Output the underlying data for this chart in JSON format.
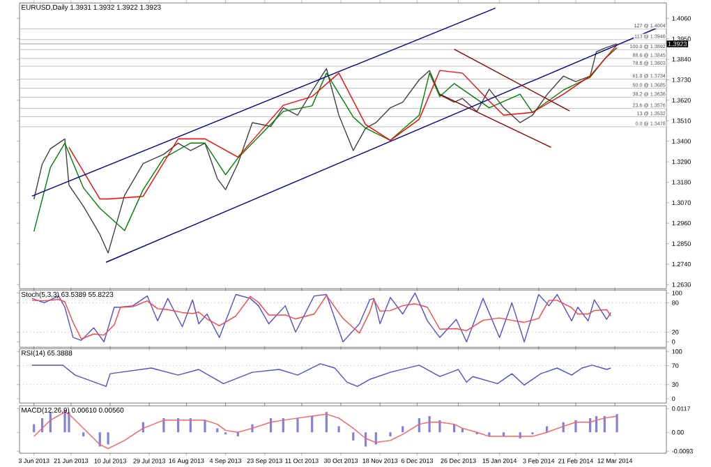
{
  "chart_data": [
    {
      "type": "line",
      "title": "EURUSD,Daily  1.3931 1.3932 1.3922 1.3923",
      "tick_labels": "y",
      "xlim": [
        "2013-05-27",
        "2014-04-06"
      ],
      "ylim": [
        1.2608,
        1.4143
      ],
      "xticks": [
        "2013-06-03",
        "2013-06-21",
        "2013-07-10",
        "2013-07-29",
        "2013-08-16",
        "2013-09-04",
        "2013-09-23",
        "2013-10-11",
        "2013-10-30",
        "2013-11-18",
        "2013-12-06",
        "2013-12-26",
        "2014-01-15",
        "2014-02-03",
        "2014-02-21",
        "2014-03-12"
      ],
      "yticks": [
        {
          "value": 1.406,
          "label": "1.4060"
        },
        {
          "value": 1.395,
          "label": "1.3950"
        },
        {
          "value": 1.384,
          "label": "1.3840"
        },
        {
          "value": 1.373,
          "label": "1.3730"
        },
        {
          "value": 1.362,
          "label": "1.3620"
        },
        {
          "value": 1.351,
          "label": "1.3510"
        },
        {
          "value": 1.34,
          "label": "1.3400"
        },
        {
          "value": 1.329,
          "label": "1.3290"
        },
        {
          "value": 1.318,
          "label": "1.3180"
        },
        {
          "value": 1.307,
          "label": "1.3070"
        },
        {
          "value": 1.296,
          "label": "1.2960"
        },
        {
          "value": 1.285,
          "label": "1.2850"
        },
        {
          "value": 1.274,
          "label": "1.2740"
        },
        {
          "value": 1.263,
          "label": "1.2630"
        }
      ],
      "x": [
        "2013-06-03",
        "2013-06-07",
        "2013-06-11",
        "2013-06-18",
        "2013-06-20",
        "2013-06-27",
        "2013-07-05",
        "2013-07-09",
        "2013-07-17",
        "2013-07-26",
        "2013-08-05",
        "2013-08-12",
        "2013-08-18",
        "2013-08-25",
        "2013-08-31",
        "2013-09-04",
        "2013-09-10",
        "2013-09-17",
        "2013-09-26",
        "2013-10-02",
        "2013-10-09",
        "2013-10-16",
        "2013-10-23",
        "2013-10-29",
        "2013-11-05",
        "2013-11-11",
        "2013-11-16",
        "2013-11-23",
        "2013-11-29",
        "2013-12-07",
        "2013-12-12",
        "2013-12-17",
        "2013-12-24",
        "2013-12-28",
        "2014-01-04",
        "2014-01-10",
        "2014-01-17",
        "2014-01-25",
        "2014-01-31",
        "2014-02-07",
        "2014-02-15",
        "2014-02-21",
        "2014-02-28",
        "2014-03-03",
        "2014-03-07",
        "2014-03-13"
      ],
      "series": [
        {
          "color": "#404040",
          "values": [
            1.3089,
            1.3277,
            1.336,
            1.3412,
            1.3164,
            1.3051,
            1.29,
            1.28,
            1.311,
            1.328,
            1.333,
            1.339,
            1.335,
            1.339,
            1.32,
            1.314,
            1.328,
            1.35,
            1.348,
            1.358,
            1.354,
            1.367,
            1.379,
            1.354,
            1.335,
            1.347,
            1.35,
            1.358,
            1.361,
            1.373,
            1.378,
            1.365,
            1.361,
            1.363,
            1.356,
            1.368,
            1.358,
            1.35,
            1.354,
            1.365,
            1.375,
            1.372,
            1.375,
            1.388,
            1.39,
            1.3923
          ]
        },
        {
          "color": "#008000",
          "x": [
            "2013-06-03",
            "2013-06-11",
            "2013-06-18",
            "2013-06-27",
            "2013-07-05",
            "2013-07-17",
            "2013-07-26",
            "2013-08-05",
            "2013-08-18",
            "2013-08-25",
            "2013-09-04",
            "2013-09-10",
            "2013-10-02",
            "2013-10-16",
            "2013-10-23",
            "2013-11-05",
            "2013-11-11",
            "2013-11-23",
            "2013-12-07",
            "2013-12-12",
            "2013-12-17",
            "2013-12-24",
            "2014-01-10",
            "2014-01-25",
            "2014-01-31",
            "2014-02-15",
            "2014-02-28",
            "2014-03-07",
            "2014-03-13"
          ],
          "values": [
            1.2915,
            1.326,
            1.339,
            1.315,
            1.304,
            1.292,
            1.314,
            1.331,
            1.339,
            1.339,
            1.322,
            1.331,
            1.356,
            1.359,
            1.3766,
            1.353,
            1.347,
            1.3405,
            1.354,
            1.3766,
            1.364,
            1.371,
            1.358,
            1.3653,
            1.3555,
            1.3675,
            1.3744,
            1.3842,
            1.3902
          ]
        },
        {
          "color": "#ff0000",
          "x": [
            "2013-06-20",
            "2013-07-05",
            "2013-07-09",
            "2013-07-26",
            "2013-08-12",
            "2013-08-25",
            "2013-09-10",
            "2013-10-02",
            "2013-10-16",
            "2013-10-29",
            "2013-11-11",
            "2013-11-23",
            "2013-12-07",
            "2013-12-17",
            "2013-12-28",
            "2014-01-10",
            "2014-01-17",
            "2014-01-31",
            "2014-02-15",
            "2014-02-28",
            "2014-03-13"
          ],
          "values": [
            1.3367,
            1.309,
            1.309,
            1.3104,
            1.3413,
            1.3413,
            1.3315,
            1.3593,
            1.364,
            1.3766,
            1.349,
            1.3405,
            1.3518,
            1.378,
            1.3766,
            1.3616,
            1.354,
            1.3555,
            1.3653,
            1.3751,
            1.3917
          ]
        },
        {
          "color": "#00008b",
          "x": [
            "2013-06-02",
            "2014-01-13"
          ],
          "values": [
            1.3105,
            1.4115
          ]
        },
        {
          "color": "#00008b",
          "x": [
            "2013-07-08",
            "2014-04-06"
          ],
          "values": [
            1.275,
            1.403
          ]
        },
        {
          "color": "#8b0000",
          "x": [
            "2013-12-24",
            "2014-02-18"
          ],
          "values": [
            1.3894,
            1.3563
          ]
        },
        {
          "color": "#8b0000",
          "x": [
            "2013-12-17",
            "2014-02-09"
          ],
          "values": [
            1.3653,
            1.3367
          ]
        }
      ],
      "ref_lines": [
        {
          "axis": "y",
          "value": 1.3923,
          "color": "#a0a0a0"
        },
        {
          "axis": "y",
          "value": 1.4004,
          "label": "127 @ 1.4004",
          "color": "#c0c0c0"
        },
        {
          "axis": "y",
          "value": 1.3946,
          "label": "113 @ 1.3946",
          "color": "#c0c0c0"
        },
        {
          "axis": "y",
          "value": 1.3892,
          "label": "100.0 @ 1.3892",
          "color": "#c0c0c0"
        },
        {
          "axis": "y",
          "value": 1.3845,
          "label": "88.6 @ 1.3845",
          "color": "#c0c0c0"
        },
        {
          "axis": "y",
          "value": 1.3803,
          "label": "78.6 @ 1.3803",
          "color": "#c0c0c0"
        },
        {
          "axis": "y",
          "value": 1.3734,
          "label": "61.8 @ 1.3734",
          "color": "#c0c0c0"
        },
        {
          "axis": "y",
          "value": 1.3685,
          "label": "50.0 @ 1.3685",
          "color": "#c0c0c0"
        },
        {
          "axis": "y",
          "value": 1.3636,
          "label": "38.2 @ 1.3636",
          "color": "#c0c0c0"
        },
        {
          "axis": "y",
          "value": 1.3576,
          "label": "23.6 @ 1.3576",
          "color": "#c0c0c0"
        },
        {
          "axis": "y",
          "value": 1.3532,
          "label": "13 @ 1.3532",
          "color": "#c0c0c0"
        },
        {
          "axis": "y",
          "value": 1.3478,
          "label": "0.0 @ 1.3478",
          "color": "#c0c0c0"
        }
      ],
      "annotations": [
        {
          "text": "1.3923",
          "y": 1.3923
        }
      ]
    },
    {
      "type": "line",
      "title": "Stoch(5,3,3) 63.5389 55.8223",
      "tick_labels": "y",
      "xlim": [
        "2013-05-27",
        "2014-04-06"
      ],
      "ylim": [
        -11,
        106
      ],
      "xticks": [
        "2013-06-03",
        "2013-06-21",
        "2013-07-10",
        "2013-07-29",
        "2013-08-16",
        "2013-09-04",
        "2013-09-23",
        "2013-10-11",
        "2013-10-30",
        "2013-11-18",
        "2013-12-06",
        "2013-12-26",
        "2014-01-15",
        "2014-02-03",
        "2014-02-21",
        "2014-03-12"
      ],
      "yticks": [
        100,
        80,
        20,
        0
      ],
      "x": [
        "2013-06-02",
        "2013-06-08",
        "2013-06-15",
        "2013-06-18",
        "2013-06-22",
        "2013-06-26",
        "2013-07-02",
        "2013-07-07",
        "2013-07-12",
        "2013-07-15",
        "2013-07-21",
        "2013-07-28",
        "2013-08-02",
        "2013-08-07",
        "2013-08-14",
        "2013-08-19",
        "2013-08-22",
        "2013-08-26",
        "2013-09-01",
        "2013-09-09",
        "2013-09-16",
        "2013-09-20",
        "2013-09-25",
        "2013-10-03",
        "2013-10-08",
        "2013-10-17",
        "2013-10-23",
        "2013-10-31",
        "2013-11-08",
        "2013-11-13",
        "2013-11-15",
        "2013-11-18",
        "2013-11-23",
        "2013-11-29",
        "2013-12-05",
        "2013-12-11",
        "2013-12-17",
        "2013-12-25",
        "2013-12-30",
        "2014-01-07",
        "2014-01-15",
        "2014-01-21",
        "2014-01-27",
        "2014-02-03",
        "2014-02-08",
        "2014-02-12",
        "2014-02-19",
        "2014-02-22",
        "2014-02-27",
        "2014-03-02",
        "2014-03-08",
        "2014-03-10"
      ],
      "series": [
        {
          "color": "#5050d0",
          "values": [
            89,
            80,
            94,
            71,
            9,
            3,
            29,
            0,
            71,
            71,
            74,
            94,
            43,
            89,
            31,
            86,
            37,
            57,
            9,
            97,
            89,
            74,
            37,
            74,
            20,
            94,
            97,
            0,
            37,
            86,
            89,
            37,
            91,
            57,
            100,
            43,
            9,
            46,
            0,
            89,
            9,
            80,
            0,
            97,
            74,
            97,
            43,
            71,
            43,
            86,
            46,
            60
          ]
        },
        {
          "color": "#ff4040",
          "values": [
            85,
            84,
            87,
            82,
            40,
            6,
            16,
            14,
            35,
            71,
            72,
            84,
            68,
            66,
            60,
            58,
            61,
            47,
            33,
            53,
            93,
            81,
            55,
            55,
            47,
            57,
            95,
            48,
            18,
            61,
            87,
            63,
            64,
            74,
            78,
            71,
            26,
            27,
            23,
            44,
            49,
            44,
            40,
            48,
            85,
            85,
            70,
            57,
            57,
            64,
            66,
            53
          ]
        }
      ],
      "ref_lines": [
        {
          "axis": "y",
          "value": 80,
          "color": "#b0b0b0",
          "line_style": "dotted"
        },
        {
          "axis": "y",
          "value": 20,
          "color": "#b0b0b0",
          "line_style": "dotted"
        }
      ]
    },
    {
      "type": "line",
      "title": "RSI(14) 65.3888",
      "tick_labels": "y",
      "xlim": [
        "2013-05-27",
        "2014-04-06"
      ],
      "ylim": [
        -9,
        106
      ],
      "xticks": [
        "2013-06-03",
        "2013-06-21",
        "2013-07-10",
        "2013-07-29",
        "2013-08-16",
        "2013-09-04",
        "2013-09-23",
        "2013-10-11",
        "2013-10-30",
        "2013-11-18",
        "2013-12-06",
        "2013-12-26",
        "2014-01-15",
        "2014-02-03",
        "2014-02-21",
        "2014-03-12"
      ],
      "yticks": [
        100,
        70,
        30,
        0
      ],
      "x": [
        "2013-06-02",
        "2013-06-17",
        "2013-06-23",
        "2013-07-08",
        "2013-07-10",
        "2013-07-30",
        "2013-08-12",
        "2013-08-22",
        "2013-09-03",
        "2013-09-17",
        "2013-09-30",
        "2013-10-09",
        "2013-10-20",
        "2013-10-27",
        "2013-11-02",
        "2013-11-07",
        "2013-11-13",
        "2013-11-23",
        "2013-12-07",
        "2013-12-17",
        "2013-12-26",
        "2013-12-30",
        "2014-01-02",
        "2014-01-14",
        "2014-01-21",
        "2014-01-27",
        "2014-02-04",
        "2014-02-12",
        "2014-02-19",
        "2014-02-24",
        "2014-03-01",
        "2014-03-08",
        "2014-03-10"
      ],
      "series": [
        {
          "color": "#5050d0",
          "values": [
            71,
            71,
            50,
            26,
            53,
            65,
            50,
            62,
            32,
            56,
            62,
            50,
            74,
            65,
            35,
            26,
            41,
            56,
            71,
            47,
            62,
            35,
            47,
            32,
            53,
            29,
            53,
            65,
            50,
            65,
            71,
            62,
            65
          ]
        }
      ],
      "ref_lines": [
        {
          "axis": "y",
          "value": 70,
          "color": "#b0b0b0",
          "line_style": "dotted"
        },
        {
          "axis": "y",
          "value": 30,
          "color": "#b0b0b0",
          "line_style": "dotted"
        }
      ]
    },
    {
      "type": "bar",
      "title": "MACD(12,26,9) 0.00610 0.00560",
      "xlim": [
        "2013-05-27",
        "2014-04-06"
      ],
      "ylim": [
        -0.0103,
        0.0131
      ],
      "xticks": [
        {
          "value": "2013-06-03",
          "label": "3 Jun 2013"
        },
        {
          "value": "2013-06-21",
          "label": "21 Jun 2013"
        },
        {
          "value": "2013-07-10",
          "label": "10 Jul 2013"
        },
        {
          "value": "2013-07-29",
          "label": "29 Jul 2013"
        },
        {
          "value": "2013-08-16",
          "label": "16 Aug 2013"
        },
        {
          "value": "2013-09-04",
          "label": "4 Sep 2013"
        },
        {
          "value": "2013-09-23",
          "label": "23 Sep 2013"
        },
        {
          "value": "2013-10-11",
          "label": "11 Oct 2013"
        },
        {
          "value": "2013-10-30",
          "label": "30 Oct 2013"
        },
        {
          "value": "2013-11-18",
          "label": "18 Nov 2013"
        },
        {
          "value": "2013-12-06",
          "label": "6 Dec 2013"
        },
        {
          "value": "2013-12-26",
          "label": "26 Dec 2013"
        },
        {
          "value": "2014-01-15",
          "label": "15 Jan 2014"
        },
        {
          "value": "2014-02-03",
          "label": "3 Feb 2014"
        },
        {
          "value": "2014-02-21",
          "label": "21 Feb 2014"
        },
        {
          "value": "2014-03-12",
          "label": "12 Mar 2014"
        }
      ],
      "yticks": [
        {
          "value": 0.0117,
          "label": "0.0117"
        },
        {
          "value": 0,
          "label": "0.00"
        },
        {
          "value": -0.0093,
          "label": "-0.0093"
        }
      ],
      "x": [
        "2013-06-03",
        "2013-06-07",
        "2013-06-11",
        "2013-06-18",
        "2013-06-20",
        "2013-06-27",
        "2013-07-05",
        "2013-07-09",
        "2013-07-17",
        "2013-07-26",
        "2013-08-05",
        "2013-08-12",
        "2013-08-18",
        "2013-08-25",
        "2013-08-31",
        "2013-09-04",
        "2013-09-10",
        "2013-09-17",
        "2013-09-26",
        "2013-10-02",
        "2013-10-09",
        "2013-10-16",
        "2013-10-23",
        "2013-10-29",
        "2013-11-05",
        "2013-11-11",
        "2013-11-16",
        "2013-11-23",
        "2013-11-29",
        "2013-12-07",
        "2013-12-12",
        "2013-12-17",
        "2013-12-24",
        "2013-12-28",
        "2014-01-04",
        "2014-01-10",
        "2014-01-17",
        "2014-01-25",
        "2014-01-31",
        "2014-02-07",
        "2014-02-15",
        "2014-02-21",
        "2014-02-28",
        "2014-03-03",
        "2014-03-07",
        "2014-03-13"
      ],
      "series": [
        {
          "color": "#8080e0",
          "values": [
            0.004,
            0.007,
            0.01,
            0.011,
            0.01,
            -0.002,
            -0.007,
            -0.006,
            0.0,
            0.005,
            0.007,
            0.007,
            0.007,
            0.006,
            0.002,
            -0.001,
            -0.002,
            0.004,
            0.007,
            0.007,
            0.007,
            0.008,
            0.01,
            0.003,
            -0.004,
            -0.007,
            -0.006,
            -0.002,
            0.003,
            0.007,
            0.008,
            0.006,
            0.004,
            0.002,
            -0.001,
            -0.002,
            -0.002,
            -0.003,
            -0.001,
            0.003,
            0.005,
            0.006,
            0.007,
            0.008,
            0.008,
            0.009
          ]
        },
        {
          "type": "line",
          "color": "#ff6060",
          "values": [
            -0.002,
            0.002,
            0.006,
            0.01,
            0.009,
            0.002,
            -0.006,
            -0.008,
            -0.004,
            0.002,
            0.006,
            0.006,
            0.006,
            0.006,
            0.004,
            0.001,
            0.0,
            0.002,
            0.005,
            0.006,
            0.007,
            0.008,
            0.009,
            0.007,
            0.002,
            -0.003,
            -0.005,
            -0.004,
            -0.001,
            0.004,
            0.005,
            0.005,
            0.004,
            0.002,
            0.0,
            -0.002,
            -0.002,
            -0.002,
            -0.002,
            0.0,
            0.003,
            0.005,
            0.005,
            0.006,
            0.007,
            0.008
          ]
        }
      ]
    }
  ]
}
